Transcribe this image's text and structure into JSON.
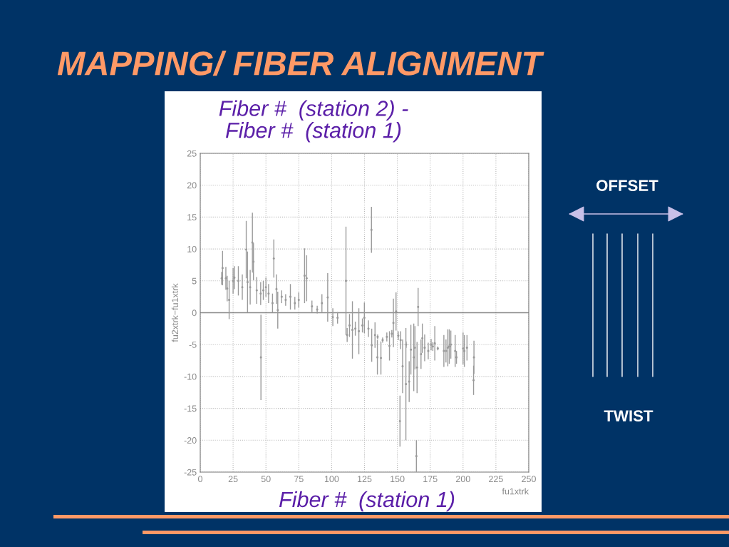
{
  "chart_data": {
    "type": "scatter",
    "title": "MAPPING/ FIBER ALIGNMENT",
    "xlabel": "fu1xtrk",
    "ylabel": "fu2xtrk−fu1xtrk",
    "annotations": [
      "Fiber #  (station 2) -\nFiber #  (station 1)",
      "Fiber #  (station 1)",
      "OFFSET",
      "TWIST"
    ],
    "x": [
      16.3,
      17,
      19.5,
      20.5,
      22,
      25,
      26,
      29,
      32,
      35,
      36,
      38,
      39.7,
      40.5,
      43,
      46,
      46.2,
      48,
      50,
      52,
      55,
      56,
      58,
      59,
      62,
      65,
      68.6,
      72,
      75,
      79.4,
      81,
      85,
      89,
      92.6,
      97,
      100.9,
      104.5,
      110.9,
      111.8,
      113.6,
      115.8,
      118,
      120.7,
      123.4,
      124.9,
      128,
      130.3,
      130.5,
      133,
      134.8,
      135,
      137.5,
      138.8,
      142,
      144,
      145.8,
      147,
      149,
      150.7,
      152,
      152.5,
      154,
      156.5,
      156.7,
      159,
      160.3,
      162.5,
      163.4,
      164.5,
      165,
      165.8,
      168,
      169,
      170.8,
      173.5,
      175.7,
      177,
      178.5,
      180.8,
      185.4,
      187,
      188.4,
      189.5,
      190.7,
      194,
      195,
      200,
      201,
      203,
      208,
      208.3
    ],
    "series": [
      {
        "color": "#9a9a9a",
        "values": [
          5.4,
          7,
          5.4,
          3.8,
          2,
          5,
          5.5,
          5,
          4,
          9.9,
          4.8,
          4,
          11,
          8,
          3.5,
          3,
          -7,
          3.5,
          4,
          3,
          1.5,
          8.5,
          3.7,
          0.4,
          2.5,
          2,
          2.5,
          1.5,
          2,
          5.8,
          5.4,
          1,
          0.5,
          1.5,
          2.4,
          -0.7,
          -0.8,
          5,
          -3.5,
          -2,
          -2.7,
          -2.5,
          -2.9,
          -2,
          -0.8,
          -2.5,
          13,
          -5.1,
          -3.5,
          -7,
          -3.8,
          -7.1,
          -4.3,
          -3.8,
          -5.2,
          -3.3,
          -1.6,
          0.2,
          -3.6,
          -17,
          -4.3,
          -8.4,
          -11.2,
          -5,
          -10.8,
          -5.8,
          -7,
          -5.5,
          -22.5,
          -8.6,
          0.9,
          -6.5,
          -4,
          -5.5,
          -6,
          -5,
          -5.3,
          -4.8,
          -5.6,
          -6,
          -6,
          -5.5,
          -5.3,
          -5,
          -6,
          -7,
          -5.6,
          -6,
          -5.5,
          -10.6,
          -7
        ],
        "errors": [
          1,
          2.7,
          1.8,
          2,
          3,
          2,
          1.8,
          2.3,
          2,
          4.5,
          4.8,
          2.7,
          4.7,
          2.9,
          2.1,
          1.8,
          6.7,
          1.5,
          1.5,
          1.5,
          1.5,
          3,
          2.3,
          2.9,
          1,
          0.9,
          2,
          1,
          1.2,
          4.3,
          3.6,
          0.9,
          0.6,
          1.4,
          3.8,
          1.4,
          0.9,
          8.5,
          1.1,
          1.8,
          4.5,
          1.1,
          3.6,
          1.1,
          2.4,
          1.3,
          3.6,
          2.6,
          2,
          2.7,
          0.4,
          2.6,
          0.4,
          0.7,
          2.3,
          0.6,
          3.8,
          3,
          0.7,
          4,
          1.4,
          4.2,
          8.8,
          0.5,
          3.2,
          3.9,
          5.3,
          3.4,
          2.5,
          4,
          3,
          2.3,
          2.3,
          2.1,
          1.3,
          0.9,
          0.7,
          2.7,
          0.3,
          2.5,
          1.8,
          2.9,
          2.7,
          2.2,
          2.5,
          1,
          2.5,
          2.5,
          2,
          2.3,
          2.6
        ]
      }
    ],
    "xlim": [
      0,
      250
    ],
    "xticks": [
      0,
      25,
      50,
      75,
      100,
      125,
      150,
      175,
      200,
      225,
      250
    ],
    "ylim": [
      -25,
      25
    ],
    "yticks": [
      -25,
      -20,
      -15,
      -10,
      -5,
      0,
      5,
      10,
      15,
      20,
      25
    ],
    "ref_lines": [
      {
        "axis": "y",
        "value": 0,
        "color": "#888888"
      }
    ],
    "grid": true
  }
}
